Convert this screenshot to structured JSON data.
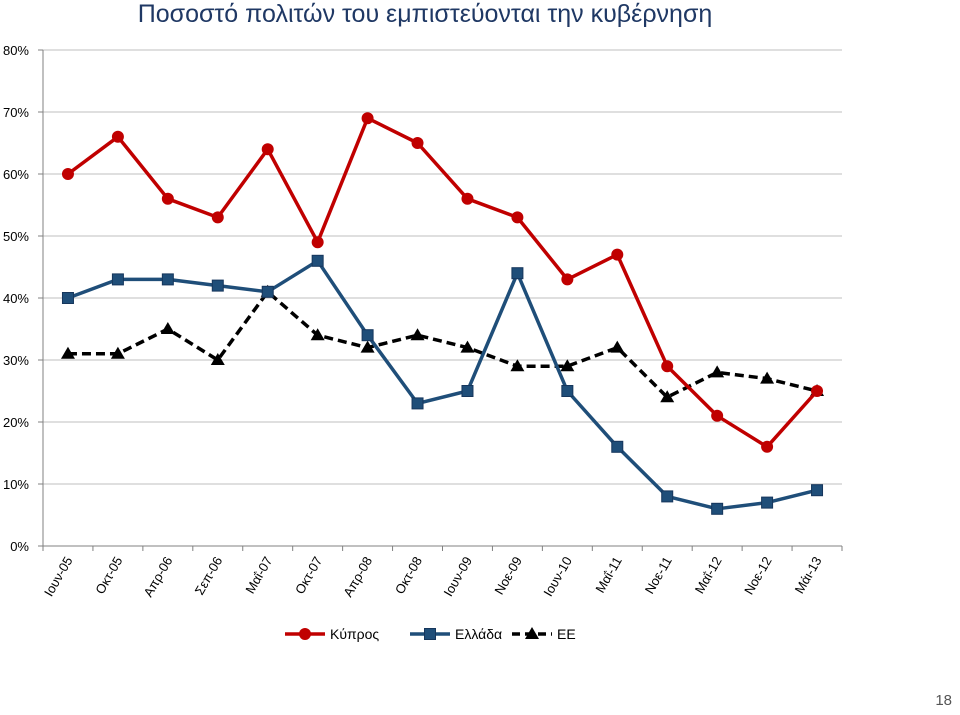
{
  "slide": {
    "page_number": "18"
  },
  "chart_data": {
    "type": "line",
    "title": "Ποσοστό πολιτών του εμπιστεύονται την κυβέρνηση",
    "xlabel": "",
    "ylabel": "",
    "ylim": [
      0,
      80
    ],
    "y_tick_labels": [
      "0%",
      "10%",
      "20%",
      "30%",
      "40%",
      "50%",
      "60%",
      "70%",
      "80%"
    ],
    "grid": "horizontal",
    "legend_position": "bottom",
    "categories": [
      "Ιουν-05",
      "Οκτ-05",
      "Απρ-06",
      "Σεπ-06",
      "Μαΐ-07",
      "Οκτ-07",
      "Απρ-08",
      "Οκτ-08",
      "Ιουν-09",
      "Νοε-09",
      "Ιουν-10",
      "Μαΐ-11",
      "Νοε-11",
      "Μαΐ-12",
      "Νοε-12",
      "Μάι-13"
    ],
    "series": [
      {
        "name": "Κύπρος",
        "color": "#c00000",
        "marker": "circle",
        "dash": "solid",
        "values": [
          60,
          66,
          56,
          53,
          64,
          49,
          69,
          65,
          56,
          53,
          43,
          47,
          29,
          21,
          16,
          25
        ]
      },
      {
        "name": "Ελλάδα",
        "color": "#1f4e79",
        "marker": "square",
        "dash": "solid",
        "values": [
          40,
          43,
          43,
          42,
          41,
          46,
          34,
          23,
          25,
          44,
          25,
          16,
          8,
          6,
          7,
          9
        ]
      },
      {
        "name": "ΕΕ",
        "color": "#000000",
        "marker": "triangle",
        "dash": "dashed",
        "values": [
          31,
          31,
          35,
          30,
          41,
          34,
          32,
          34,
          32,
          29,
          29,
          32,
          24,
          28,
          27,
          25
        ]
      }
    ]
  }
}
